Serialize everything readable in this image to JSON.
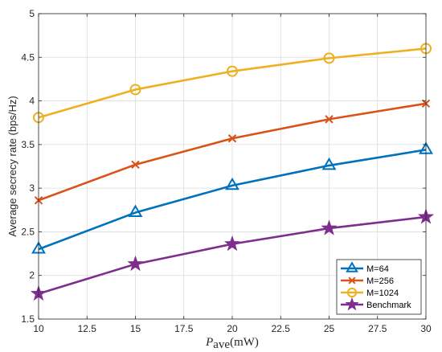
{
  "chart_data": {
    "type": "line",
    "x": [
      10,
      15,
      20,
      25,
      30
    ],
    "xlim": [
      10,
      30
    ],
    "ylim": [
      1.5,
      5
    ],
    "xticks": [
      "10",
      "12.5",
      "15",
      "17.5",
      "20",
      "22.5",
      "25",
      "27.5",
      "30"
    ],
    "yticks": [
      "1.5",
      "2",
      "2.5",
      "3",
      "3.5",
      "4",
      "4.5",
      "5"
    ],
    "xlabel": {
      "symbol": "P",
      "subscript": "ave",
      "unit": "(mW)"
    },
    "ylabel": "Average secrecy rate (bps/Hz)",
    "grid": true,
    "legend_position": "bottom-right",
    "series": [
      {
        "name": "M=64",
        "color": "#0072BD",
        "marker": "triangle",
        "values": [
          2.3,
          2.72,
          3.03,
          3.26,
          3.44
        ]
      },
      {
        "name": "M=256",
        "color": "#D95319",
        "marker": "x",
        "values": [
          2.86,
          3.27,
          3.57,
          3.79,
          3.97
        ]
      },
      {
        "name": "M=1024",
        "color": "#EDB120",
        "marker": "circle",
        "values": [
          3.81,
          4.13,
          4.34,
          4.49,
          4.6
        ]
      },
      {
        "name": "Benchmark",
        "color": "#7E2F8E",
        "marker": "star",
        "values": [
          1.79,
          2.13,
          2.36,
          2.54,
          2.67
        ]
      }
    ]
  }
}
